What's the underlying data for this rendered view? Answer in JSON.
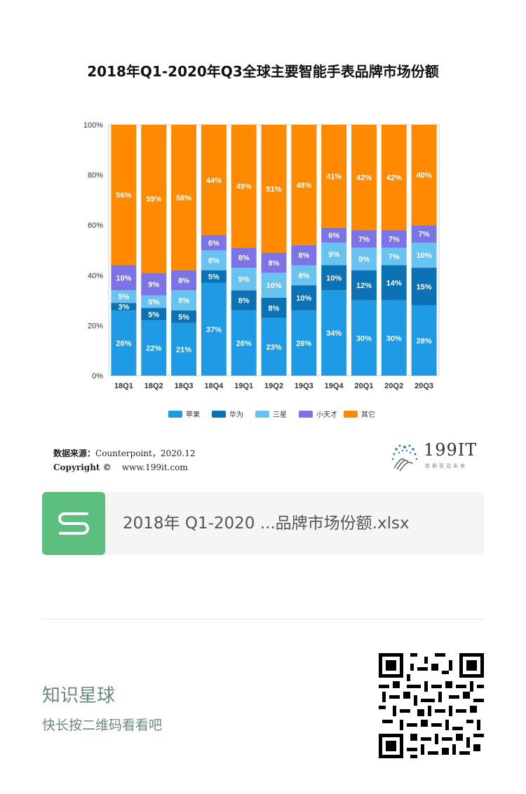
{
  "chart_data": {
    "type": "stacked-bar",
    "title": "2018年Q1-2020年Q3全球主要智能手表品牌市场份额",
    "categories": [
      "18Q1",
      "18Q2",
      "18Q3",
      "18Q4",
      "19Q1",
      "19Q2",
      "19Q3",
      "19Q4",
      "20Q1",
      "20Q2",
      "20Q3"
    ],
    "y_ticks": [
      "0%",
      "20%",
      "40%",
      "60%",
      "80%",
      "100%"
    ],
    "ylim": [
      0,
      100
    ],
    "series": [
      {
        "name": "苹果",
        "color": "#1e9be4",
        "values": [
          26,
          22,
          21,
          37,
          26,
          23,
          26,
          34,
          30,
          30,
          28
        ]
      },
      {
        "name": "华为",
        "color": "#0a72b5",
        "values": [
          3,
          5,
          5,
          5,
          8,
          8,
          10,
          10,
          12,
          14,
          15
        ]
      },
      {
        "name": "三星",
        "color": "#69c3f0",
        "values": [
          5,
          5,
          8,
          8,
          9,
          10,
          8,
          9,
          9,
          7,
          10
        ]
      },
      {
        "name": "小天才",
        "color": "#7b73e6",
        "values": [
          10,
          9,
          8,
          6,
          8,
          8,
          8,
          6,
          7,
          7,
          7
        ]
      },
      {
        "name": "其它",
        "color": "#ff8a00",
        "values": [
          56,
          59,
          58,
          44,
          49,
          51,
          48,
          41,
          42,
          42,
          40
        ]
      }
    ]
  },
  "source": {
    "label": "数据来源：",
    "text": "Counterpoint，2020.12",
    "copyright_label": "Copyright ©",
    "site": "www.199it.com"
  },
  "logo": {
    "name": "199IT",
    "tagline": "数据驱动未来"
  },
  "file_card": {
    "icon": "spreadsheet-s-icon",
    "filename": "2018年 Q1-2020 ...品牌市场份额.xlsx"
  },
  "footer": {
    "title": "知识星球",
    "hint": "快长按二维码看看吧"
  }
}
